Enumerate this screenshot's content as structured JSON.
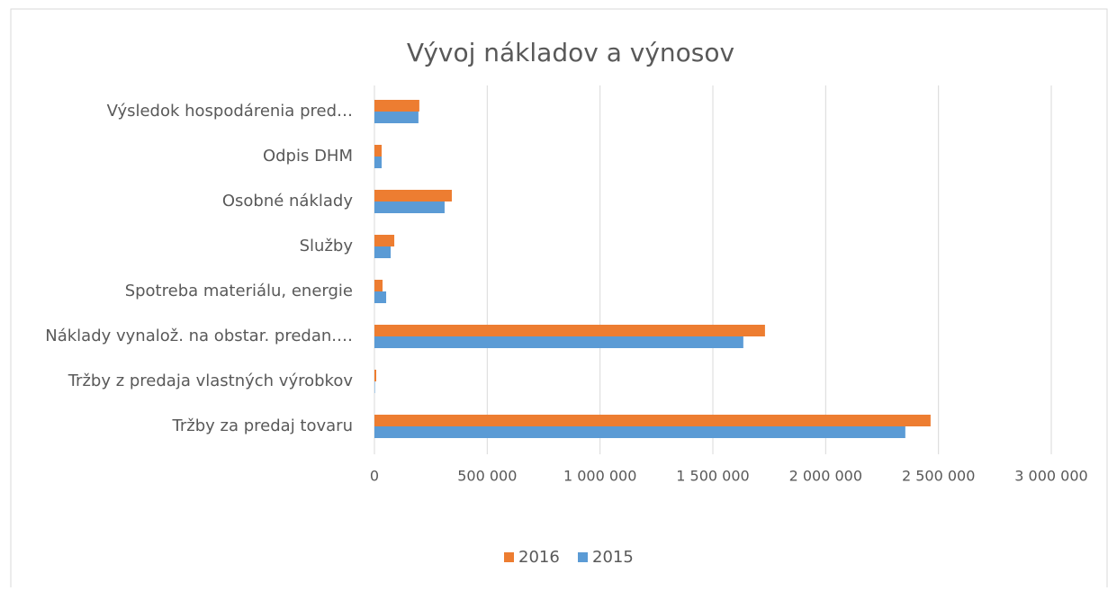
{
  "chart_data": {
    "type": "hbar",
    "title": "Vývoj nákladov a výnosov",
    "categories": [
      "Výsledok hospodárenia pred…",
      "Odpis DHM",
      "Osobné náklady",
      "Služby",
      "Spotreba materiálu, energie",
      "Náklady vynalož. na obstar. predan.…",
      "Tržby z predaja vlastných výrobkov",
      "Tržby za predaj tovaru"
    ],
    "series": [
      {
        "name": "2016",
        "color": "#ed7d31",
        "values": [
          199000,
          32000,
          343000,
          88000,
          36000,
          1731000,
          8000,
          2465000
        ]
      },
      {
        "name": "2015",
        "color": "#5b9bd5",
        "values": [
          195000,
          32000,
          311000,
          72000,
          52000,
          1635000,
          2000,
          2353000
        ]
      }
    ],
    "xlim": [
      0,
      3000000
    ],
    "xticks": [
      0,
      {
        "value": 500000,
        "label": "500 000"
      },
      {
        "value": 1000000,
        "label": "1 000 000"
      },
      {
        "value": 1500000,
        "label": "1 500 000"
      },
      {
        "value": 2000000,
        "label": "2 000 000"
      },
      {
        "value": 2500000,
        "label": "2 500 000"
      },
      {
        "value": 3000000,
        "label": "3 000 000"
      }
    ],
    "grid": true,
    "legend": "bottom"
  }
}
